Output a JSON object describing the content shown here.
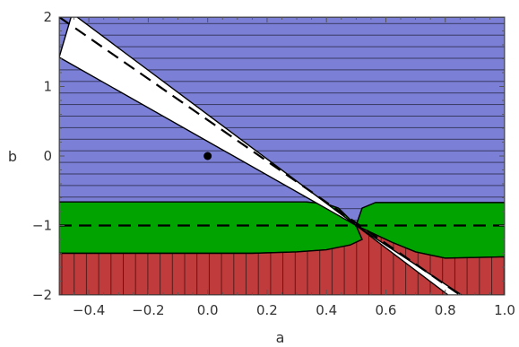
{
  "chart_data": {
    "type": "region",
    "title": "",
    "xlabel": "a",
    "ylabel": "b",
    "xlim": [
      -0.5,
      1.0
    ],
    "ylim": [
      -2,
      2
    ],
    "xticks": [
      -0.4,
      -0.2,
      0.0,
      0.2,
      0.4,
      0.6,
      0.8,
      1.0
    ],
    "xtick_labels": [
      "−0.4",
      "−0.2",
      "0.0",
      "0.2",
      "0.4",
      "0.6",
      "0.8",
      "1.0"
    ],
    "yticks": [
      -2,
      -1,
      0,
      1,
      2
    ],
    "ytick_labels": [
      "−2",
      "−1",
      "0",
      "1",
      "2"
    ],
    "grid": false,
    "colors": {
      "blue_region": "#7b7fd6",
      "green_region": "#00a300",
      "red_region": "#c03b3b",
      "wedge": "#ffffff",
      "line": "#000000"
    },
    "regions": [
      {
        "fill": "blue_region",
        "hatch": "horizontal",
        "boundary": [
          [
            -0.5,
            2.0
          ],
          [
            1.0,
            2.0
          ],
          [
            1.0,
            -0.67
          ],
          [
            0.565,
            -0.67
          ],
          [
            0.52,
            -0.75
          ],
          [
            0.5,
            -1.0
          ],
          [
            0.44,
            -0.75
          ],
          [
            0.4,
            -0.69
          ],
          [
            0.33,
            -0.66
          ],
          [
            -0.5,
            -0.66
          ]
        ]
      },
      {
        "fill": "green_region",
        "hatch": "none",
        "boundary": [
          [
            -0.5,
            -0.66
          ],
          [
            0.33,
            -0.66
          ],
          [
            0.4,
            -0.69
          ],
          [
            0.44,
            -0.75
          ],
          [
            0.5,
            -1.0
          ],
          [
            0.52,
            -0.75
          ],
          [
            0.565,
            -0.67
          ],
          [
            1.0,
            -0.67
          ],
          [
            1.0,
            -1.45
          ],
          [
            0.8,
            -1.47
          ],
          [
            0.7,
            -1.38
          ],
          [
            0.62,
            -1.24
          ],
          [
            0.5,
            -1.0
          ],
          [
            0.52,
            -1.2
          ],
          [
            0.48,
            -1.28
          ],
          [
            0.4,
            -1.35
          ],
          [
            0.3,
            -1.38
          ],
          [
            0.15,
            -1.4
          ],
          [
            -0.5,
            -1.4
          ]
        ]
      },
      {
        "fill": "red_region",
        "hatch": "vertical",
        "boundary": [
          [
            -0.5,
            -1.4
          ],
          [
            0.15,
            -1.4
          ],
          [
            0.3,
            -1.38
          ],
          [
            0.4,
            -1.35
          ],
          [
            0.48,
            -1.28
          ],
          [
            0.52,
            -1.2
          ],
          [
            0.5,
            -1.0
          ],
          [
            0.62,
            -1.24
          ],
          [
            0.7,
            -1.38
          ],
          [
            0.8,
            -1.47
          ],
          [
            1.0,
            -1.45
          ],
          [
            1.0,
            -2.0
          ],
          [
            -0.5,
            -2.0
          ]
        ]
      }
    ],
    "wedges": [
      {
        "fill": "wedge",
        "boundary": [
          [
            -0.5,
            1.42
          ],
          [
            -0.46,
            2.0
          ],
          [
            -0.44,
            2.0
          ],
          [
            0.5,
            -1.0
          ]
        ]
      },
      {
        "fill": "wedge",
        "boundary": [
          [
            0.5,
            -1.0
          ],
          [
            0.855,
            -2.0
          ],
          [
            0.81,
            -2.0
          ]
        ]
      }
    ],
    "lines": [
      {
        "style": "dashed",
        "points": [
          [
            -0.5,
            2.0
          ],
          [
            0.85,
            -2.0
          ]
        ]
      },
      {
        "style": "dashed",
        "points": [
          [
            -0.5,
            -1.0
          ],
          [
            1.0,
            -1.0
          ]
        ]
      }
    ],
    "points": [
      {
        "x": 0.0,
        "y": 0.0
      }
    ]
  }
}
